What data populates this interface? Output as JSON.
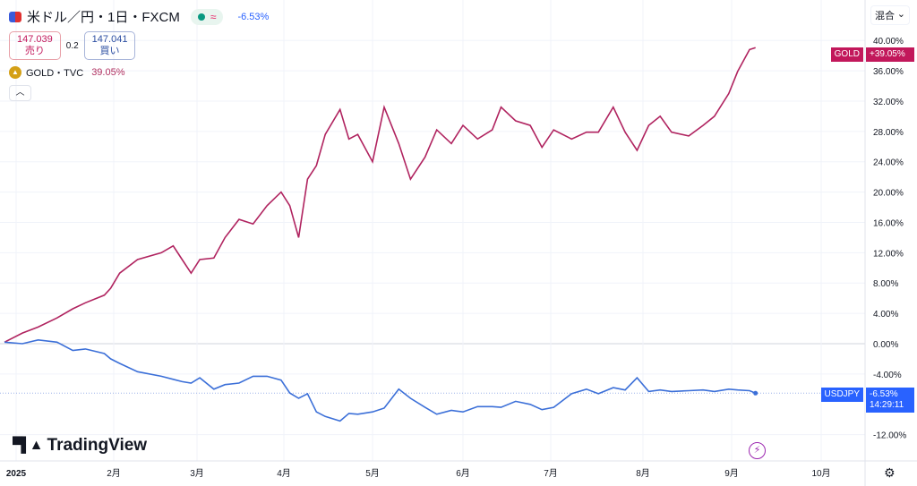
{
  "header": {
    "symbol": "米ドル／円・1日・FXCM",
    "change": "-6.53%",
    "sell_price": "147.039",
    "sell_label": "売り",
    "spread": "0.2",
    "buy_price": "147.041",
    "buy_label": "買い",
    "compare_symbol": "GOLD・TVC",
    "compare_change": "39.05%",
    "collapse_icon": "chevron-up"
  },
  "scale_mode": "混合",
  "logo": "TradingView",
  "colors": {
    "gold": "#b0235f",
    "usdjpy": "#3b6fd8",
    "gold_tag": "#c2185b",
    "usdjpy_tag": "#2962ff"
  },
  "tags": {
    "gold_name": "GOLD",
    "gold_value": "+39.05%",
    "usd_name": "USDJPY",
    "usd_value": "-6.53%",
    "countdown": "14:29:11"
  },
  "chart_data": {
    "type": "line",
    "yaxis_ticks": [
      "40.00%",
      "36.00%",
      "32.00%",
      "28.00%",
      "24.00%",
      "20.00%",
      "16.00%",
      "12.00%",
      "8.00%",
      "4.00%",
      "0.00%",
      "-4.00%",
      "-12.00%"
    ],
    "xaxis_ticks": [
      "2025",
      "2月",
      "3月",
      "4月",
      "5月",
      "6月",
      "7月",
      "8月",
      "9月",
      "10月"
    ],
    "ylim": [
      -14,
      41
    ],
    "grid": true,
    "unit": "%",
    "x": [
      "2024-12-28",
      "2025-01-03",
      "2025-01-08",
      "2025-01-14",
      "2025-01-19",
      "2025-01-23",
      "2025-01-29",
      "2025-01-31",
      "2025-02-03",
      "2025-02-09",
      "2025-02-17",
      "2025-02-21",
      "2025-02-24",
      "2025-02-27",
      "2025-03-02",
      "2025-03-07",
      "2025-03-11",
      "2025-03-16",
      "2025-03-21",
      "2025-03-26",
      "2025-03-31",
      "2025-04-03",
      "2025-04-06",
      "2025-04-09",
      "2025-04-12",
      "2025-04-15",
      "2025-04-20",
      "2025-04-23",
      "2025-04-26",
      "2025-05-01",
      "2025-05-05",
      "2025-05-10",
      "2025-05-14",
      "2025-05-19",
      "2025-05-23",
      "2025-05-28",
      "2025-06-01",
      "2025-06-06",
      "2025-06-11",
      "2025-06-14",
      "2025-06-19",
      "2025-06-24",
      "2025-06-28",
      "2025-07-02",
      "2025-07-08",
      "2025-07-13",
      "2025-07-17",
      "2025-07-22",
      "2025-07-26",
      "2025-07-30",
      "2025-08-03",
      "2025-08-07",
      "2025-08-11",
      "2025-08-17",
      "2025-08-22",
      "2025-08-26",
      "2025-08-31",
      "2025-09-03",
      "2025-09-07",
      "2025-09-09"
    ],
    "series": [
      {
        "name": "GOLD",
        "values": [
          0.2,
          1.4,
          2.2,
          3.4,
          4.6,
          5.4,
          6.4,
          7.3,
          9.3,
          11.1,
          12.0,
          12.9,
          11.1,
          9.3,
          11.1,
          11.3,
          14.0,
          16.4,
          15.8,
          18.2,
          20.0,
          18.2,
          14.0,
          21.7,
          23.5,
          27.6,
          30.9,
          27.0,
          27.6,
          24.0,
          31.2,
          26.4,
          21.7,
          24.6,
          28.2,
          26.4,
          28.8,
          27.0,
          28.2,
          31.2,
          29.4,
          28.8,
          25.9,
          28.2,
          27.0,
          27.9,
          27.9,
          31.2,
          27.9,
          25.5,
          28.8,
          30.0,
          27.9,
          27.4,
          28.8,
          30.0,
          33.0,
          35.9,
          38.8,
          39.05
        ]
      },
      {
        "name": "USDJPY",
        "values": [
          0.2,
          0,
          0.5,
          0.2,
          -0.9,
          -0.7,
          -1.3,
          -2.0,
          -2.6,
          -3.7,
          -4.3,
          -4.7,
          -5.0,
          -5.2,
          -4.5,
          -6.0,
          -5.4,
          -5.2,
          -4.3,
          -4.3,
          -4.8,
          -6.5,
          -7.2,
          -6.6,
          -9.0,
          -9.6,
          -10.2,
          -9.2,
          -9.3,
          -9.0,
          -8.5,
          -6.0,
          -7.2,
          -8.4,
          -9.3,
          -8.8,
          -9.0,
          -8.3,
          -8.3,
          -8.4,
          -7.6,
          -8.0,
          -8.7,
          -8.4,
          -6.6,
          -6.0,
          -6.6,
          -5.8,
          -6.1,
          -4.5,
          -6.3,
          -6.1,
          -6.3,
          -6.2,
          -6.1,
          -6.3,
          -6.0,
          -6.1,
          -6.2,
          -6.53
        ]
      }
    ]
  }
}
